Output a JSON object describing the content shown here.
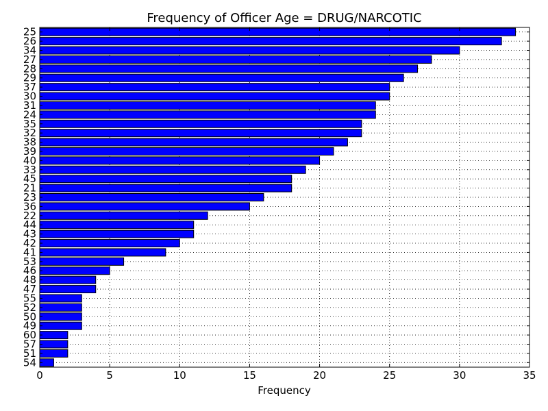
{
  "chart_data": {
    "type": "bar",
    "orientation": "horizontal",
    "title": "Frequency of Officer Age = DRUG/NARCOTIC",
    "xlabel": "Frequency",
    "ylabel": "",
    "xlim": [
      0,
      35
    ],
    "xticks": [
      "0",
      "5",
      "10",
      "15",
      "20",
      "25",
      "30",
      "35"
    ],
    "grid": true,
    "bar_color": "#0000ff",
    "categories": [
      "25",
      "26",
      "34",
      "27",
      "28",
      "29",
      "37",
      "30",
      "31",
      "24",
      "35",
      "32",
      "38",
      "39",
      "40",
      "33",
      "45",
      "21",
      "23",
      "36",
      "22",
      "44",
      "43",
      "42",
      "41",
      "53",
      "46",
      "48",
      "47",
      "55",
      "52",
      "50",
      "49",
      "60",
      "57",
      "51",
      "54"
    ],
    "values": [
      34,
      33,
      30,
      28,
      27,
      26,
      25,
      25,
      24,
      24,
      23,
      23,
      22,
      21,
      20,
      19,
      18,
      18,
      16,
      15,
      12,
      11,
      11,
      10,
      9,
      6,
      5,
      4,
      4,
      3,
      3,
      3,
      3,
      2,
      2,
      2,
      1
    ]
  }
}
